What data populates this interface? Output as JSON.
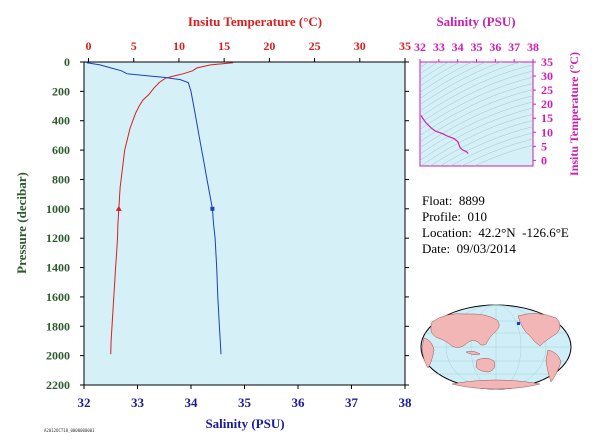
{
  "colors": {
    "temperature": "#d81e1e",
    "salinity": "#1a3fc4",
    "salinity_axis": "#1a1a9e",
    "pressure_axis": "#2d5a2d",
    "ts_magenta": "#cc1fb0",
    "plot_bg": "#d6f0f7"
  },
  "chart_data": [
    {
      "type": "line",
      "xlabel_top": "Insitu Temperature (°C)",
      "xlabel_bottom": "Salinity (PSU)",
      "ylabel": "Pressure (decibar)",
      "temperature_ticks": [
        "0",
        "5",
        "10",
        "15",
        "20",
        "25",
        "30",
        "35"
      ],
      "salinity_ticks": [
        "32",
        "33",
        "34",
        "35",
        "36",
        "37",
        "38"
      ],
      "pressure_ticks": [
        "0",
        "200",
        "400",
        "600",
        "800",
        "1000",
        "1200",
        "1400",
        "1600",
        "1800",
        "2000",
        "2200"
      ],
      "temperature_range": [
        -0.5,
        35
      ],
      "salinity_range": [
        32,
        38
      ],
      "pressure_range": [
        0,
        2200
      ],
      "series": [
        {
          "name": "Insitu Temperature (°C)",
          "axis": "temperature",
          "marker_at_pressure": 1000,
          "points": [
            [
              16.0,
              5
            ],
            [
              13.5,
              20
            ],
            [
              12.0,
              40
            ],
            [
              11.5,
              60
            ],
            [
              10.5,
              80
            ],
            [
              9.5,
              95
            ],
            [
              8.5,
              110
            ],
            [
              7.8,
              140
            ],
            [
              7.2,
              180
            ],
            [
              6.7,
              220
            ],
            [
              6.0,
              260
            ],
            [
              5.6,
              300
            ],
            [
              5.2,
              350
            ],
            [
              4.9,
              400
            ],
            [
              4.6,
              450
            ],
            [
              4.4,
              500
            ],
            [
              4.2,
              550
            ],
            [
              4.0,
              600
            ],
            [
              3.9,
              650
            ],
            [
              3.8,
              700
            ],
            [
              3.7,
              750
            ],
            [
              3.6,
              800
            ],
            [
              3.5,
              850
            ],
            [
              3.45,
              900
            ],
            [
              3.4,
              950
            ],
            [
              3.35,
              1000
            ],
            [
              3.3,
              1050
            ],
            [
              3.25,
              1100
            ],
            [
              3.2,
              1200
            ],
            [
              3.1,
              1300
            ],
            [
              3.0,
              1400
            ],
            [
              2.9,
              1500
            ],
            [
              2.8,
              1600
            ],
            [
              2.7,
              1700
            ],
            [
              2.6,
              1800
            ],
            [
              2.5,
              1900
            ],
            [
              2.45,
              1990
            ]
          ]
        },
        {
          "name": "Salinity (PSU)",
          "axis": "salinity",
          "marker_at_pressure": 1000,
          "points": [
            [
              32.05,
              5
            ],
            [
              32.3,
              20
            ],
            [
              32.5,
              40
            ],
            [
              32.7,
              60
            ],
            [
              32.8,
              80
            ],
            [
              33.2,
              95
            ],
            [
              33.5,
              105
            ],
            [
              33.8,
              120
            ],
            [
              33.95,
              140
            ],
            [
              34.0,
              200
            ],
            [
              34.05,
              300
            ],
            [
              34.1,
              400
            ],
            [
              34.15,
              500
            ],
            [
              34.2,
              600
            ],
            [
              34.25,
              700
            ],
            [
              34.3,
              800
            ],
            [
              34.35,
              900
            ],
            [
              34.4,
              1000
            ],
            [
              34.42,
              1100
            ],
            [
              34.45,
              1200
            ],
            [
              34.48,
              1400
            ],
            [
              34.5,
              1600
            ],
            [
              34.53,
              1800
            ],
            [
              34.56,
              1990
            ]
          ]
        }
      ]
    },
    {
      "type": "line",
      "title": "Salinity (PSU)",
      "ylabel": "Insitu Temperature (°C)",
      "salinity_ticks": [
        "32",
        "33",
        "34",
        "35",
        "36",
        "37",
        "38"
      ],
      "temperature_ticks": [
        "0",
        "5",
        "10",
        "15",
        "20",
        "25",
        "30",
        "35"
      ],
      "salinity_range": [
        32,
        38
      ],
      "temperature_range": [
        -2,
        35
      ],
      "series": [
        {
          "name": "T-S",
          "points": [
            [
              32.05,
              16.0
            ],
            [
              32.3,
              13.5
            ],
            [
              32.6,
              11.5
            ],
            [
              32.8,
              10.5
            ],
            [
              33.2,
              9.5
            ],
            [
              33.5,
              8.5
            ],
            [
              33.8,
              7.8
            ],
            [
              34.0,
              6.7
            ],
            [
              34.05,
              6.0
            ],
            [
              34.1,
              4.9
            ],
            [
              34.2,
              4.0
            ],
            [
              34.3,
              3.6
            ],
            [
              34.4,
              3.35
            ],
            [
              34.45,
              3.2
            ],
            [
              34.5,
              2.8
            ],
            [
              34.56,
              2.45
            ]
          ]
        }
      ]
    }
  ],
  "info": {
    "float": "Float:  8899",
    "profile": "Profile:  010",
    "location": "Location:  42.2°N  -126.6°E",
    "date": "Date:  09/03/2014"
  },
  "footer_code": "A2012OCT18_0000000001"
}
